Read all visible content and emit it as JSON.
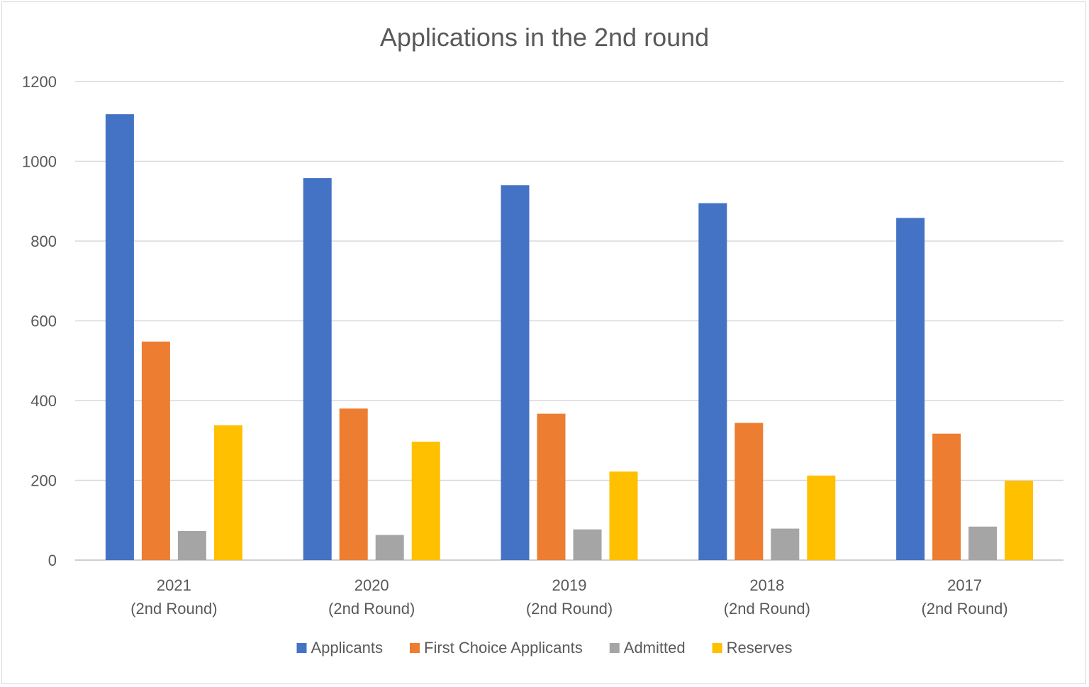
{
  "chart_data": {
    "type": "bar",
    "title": "Applications in the 2nd round",
    "categories": [
      [
        "2021",
        "(2nd Round)"
      ],
      [
        "2020",
        "(2nd Round)"
      ],
      [
        "2019",
        "(2nd Round)"
      ],
      [
        "2018",
        "(2nd Round)"
      ],
      [
        "2017",
        "(2nd Round)"
      ]
    ],
    "series": [
      {
        "name": "Applicants",
        "color": "#4472C4",
        "values": [
          1118,
          958,
          940,
          895,
          858
        ]
      },
      {
        "name": "First Choice Applicants",
        "color": "#ED7D31",
        "values": [
          548,
          380,
          367,
          344,
          317
        ]
      },
      {
        "name": "Admitted",
        "color": "#A5A5A5",
        "values": [
          73,
          63,
          77,
          79,
          84
        ]
      },
      {
        "name": "Reserves",
        "color": "#FFC000",
        "values": [
          338,
          297,
          222,
          212,
          199
        ]
      }
    ],
    "y_ticks": [
      "0",
      "200",
      "400",
      "600",
      "800",
      "1000",
      "1200"
    ],
    "ylim": [
      0,
      1200
    ],
    "xlabel": "",
    "ylabel": "",
    "grid": true,
    "legend_position": "bottom"
  }
}
